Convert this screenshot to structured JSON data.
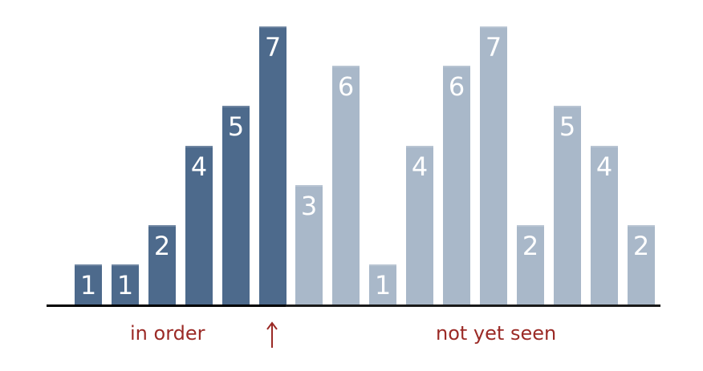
{
  "chart_data": {
    "type": "bar",
    "values": [
      1,
      1,
      2,
      4,
      5,
      7,
      3,
      6,
      1,
      4,
      6,
      7,
      2,
      5,
      4,
      2
    ],
    "labels": [
      "1",
      "1",
      "2",
      "4",
      "5",
      "7",
      "3",
      "6",
      "1",
      "4",
      "6",
      "7",
      "2",
      "5",
      "4",
      "2"
    ],
    "in_order_count": 6,
    "ylim": [
      0,
      7
    ],
    "colors": {
      "in_order": "#4d6a8c",
      "not_yet_seen": "#a9b8c9",
      "label": "#ffffff",
      "caption": "#9b2a26",
      "baseline": "#1a1a1a"
    }
  },
  "captions": {
    "in_order": "in order",
    "not_yet_seen": "not yet seen",
    "pointer": "↑"
  },
  "icons": {
    "pointer": "up-arrow-icon"
  }
}
